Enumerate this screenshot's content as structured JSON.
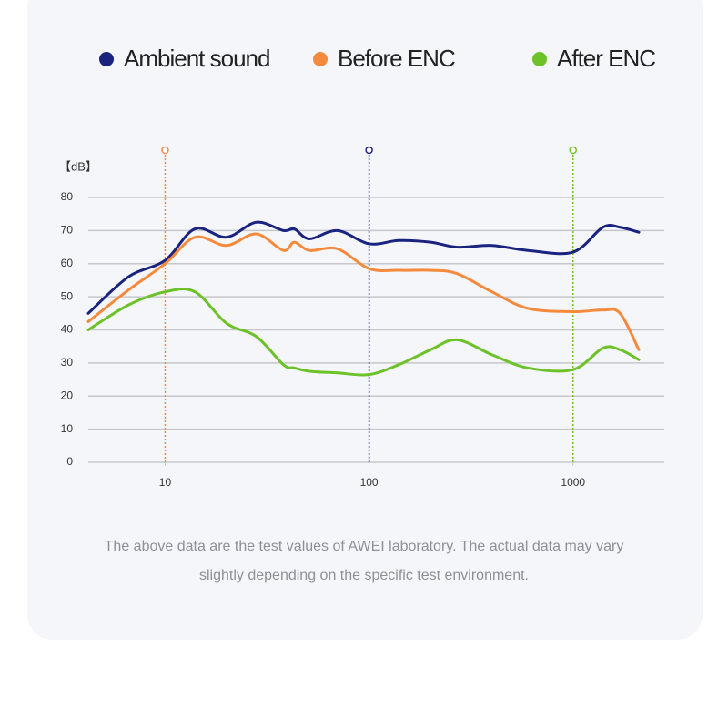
{
  "chart_data": {
    "type": "line",
    "y_label": "【dB】",
    "x": [
      4.2,
      6.6,
      10,
      14,
      20,
      28,
      38,
      43,
      51,
      70,
      100,
      140,
      200,
      270,
      400,
      600,
      1000,
      1400,
      1700,
      2100
    ],
    "series": [
      {
        "name": "Ambient sound",
        "color": "#1a237e",
        "values": [
          45,
          56,
          61,
          70.5,
          68,
          72.5,
          70,
          70.5,
          67.5,
          70,
          66,
          67,
          66.5,
          65,
          65.5,
          64,
          63.5,
          71,
          71,
          69.5
        ]
      },
      {
        "name": "Before ENC",
        "color": "#f58a3c",
        "values": [
          42.5,
          52,
          60,
          68,
          65.5,
          69,
          64,
          66.5,
          64,
          64.5,
          58.5,
          58,
          58,
          57,
          51.5,
          46.5,
          45.5,
          46,
          45,
          34
        ]
      },
      {
        "name": "After ENC",
        "color": "#6cc228",
        "values": [
          40,
          47.5,
          51.5,
          51.5,
          42,
          38,
          29.5,
          28.5,
          27.5,
          27,
          26.5,
          29.5,
          34,
          37,
          32.5,
          28.5,
          28,
          34.5,
          34,
          31
        ]
      }
    ],
    "xlim": [
      4.2,
      2800
    ],
    "xticks": [
      10,
      100,
      1000
    ],
    "x_log": true,
    "ylim": [
      0,
      80
    ],
    "yticks": [
      0,
      10,
      20,
      30,
      40,
      50,
      60,
      70,
      80
    ],
    "grid": true,
    "reference_lines": [
      {
        "x": 10,
        "color": "#f58a3c"
      },
      {
        "x": 100,
        "color": "#1a237e"
      },
      {
        "x": 1000,
        "color": "#6cc228"
      }
    ],
    "note": "The above data are the test values of AWEI laboratory. The actual data may vary slightly depending on the specific test environment."
  }
}
